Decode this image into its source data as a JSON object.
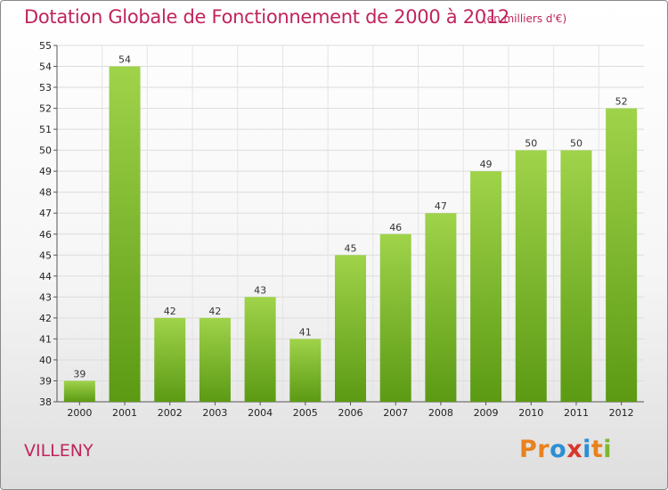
{
  "title": "Dotation Globale de Fonctionnement de 2000 à 2012",
  "subtitle": "(en milliers d'€)",
  "commune": "VILLENY",
  "logo": {
    "text": "Proxiti",
    "letter_colors": [
      "#e8821e",
      "#e8821e",
      "#2c8fd4",
      "#d9362b",
      "#2c8fd4",
      "#e8821e",
      "#7cb82f"
    ]
  },
  "chart_data": {
    "type": "bar",
    "categories": [
      "2000",
      "2001",
      "2002",
      "2003",
      "2004",
      "2005",
      "2006",
      "2007",
      "2008",
      "2009",
      "2010",
      "2011",
      "2012"
    ],
    "values": [
      39,
      54,
      42,
      42,
      43,
      41,
      45,
      46,
      47,
      49,
      50,
      50,
      52
    ],
    "ylim": [
      38,
      55
    ],
    "yticks": [
      38,
      39,
      40,
      41,
      42,
      43,
      44,
      45,
      46,
      47,
      48,
      49,
      50,
      51,
      52,
      53,
      54,
      55
    ],
    "grid": true,
    "bar_color_top": "#9fd34a",
    "bar_color_bottom": "#5c9a14"
  }
}
